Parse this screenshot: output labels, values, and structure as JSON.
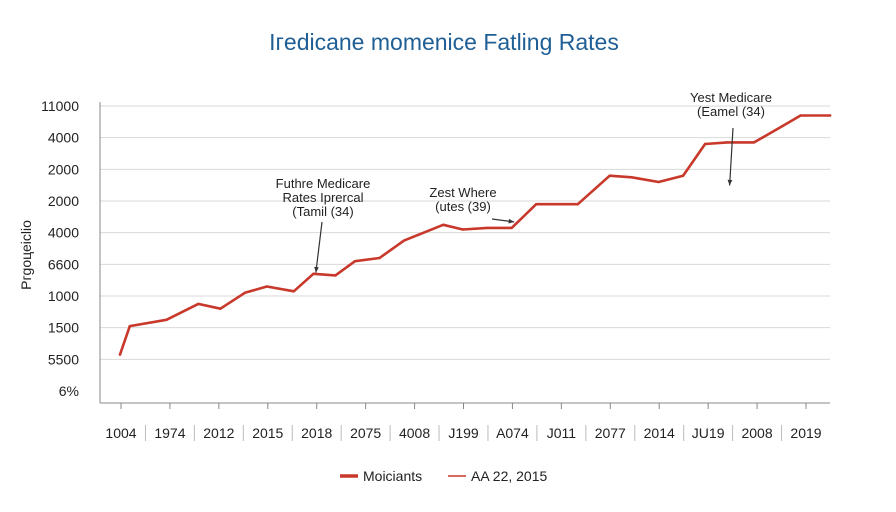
{
  "chart_data": {
    "type": "line",
    "title": "Ігedicane momenice Fatling Rates",
    "ylabel": "Ргgоцеісlіо",
    "xlabel": "",
    "grid": true,
    "y_tick_labels": [
      "11000",
      "4000",
      "2000",
      "2000",
      "4000",
      "6600",
      "1000",
      "1500",
      "5500",
      "6%"
    ],
    "x_tick_labels": [
      "1004",
      "1974",
      "2012",
      "2015",
      "2018",
      "2075",
      "4008",
      "J199",
      "A074",
      "J011",
      "2077",
      "2014",
      "JU19",
      "2008",
      "2019"
    ],
    "ylim": [
      0,
      9
    ],
    "xlim": [
      0,
      14.5
    ],
    "series": [
      {
        "name": "Moicіants",
        "color": "#c8382b",
        "x": [
          0,
          0.2,
          0.95,
          1.6,
          2.05,
          2.55,
          3.0,
          3.55,
          3.95,
          4.4,
          4.8,
          5.3,
          5.8,
          6.2,
          6.6,
          7.0,
          7.5,
          8.0,
          8.5,
          8.9,
          9.35,
          10.0,
          10.45,
          11.0,
          11.5,
          11.95,
          12.4,
          12.95,
          13.4,
          13.9,
          14.5
        ],
        "y": [
          1.15,
          2.05,
          2.25,
          2.75,
          2.6,
          3.1,
          3.3,
          3.15,
          3.7,
          3.65,
          4.1,
          4.2,
          4.75,
          5.0,
          5.25,
          5.1,
          5.15,
          5.15,
          5.9,
          5.9,
          5.9,
          6.8,
          6.75,
          6.6,
          6.8,
          7.8,
          7.85,
          7.85,
          8.25,
          8.7,
          8.7
        ]
      }
    ],
    "legend": {
      "placement": "bottom-center",
      "entries": [
        {
          "label": "Moicіants",
          "color": "#c8382b",
          "style": "thick"
        },
        {
          "label": "AA 22, 2015",
          "color": "#c8382b",
          "style": "thin"
        }
      ]
    },
    "annotations": [
      {
        "lines": [
          "Futhre Medicare",
          "Rates Iprercal",
          "(Tamil (34)"
        ],
        "x": 4.0,
        "y": 3.55
      },
      {
        "lines": [
          "Zest Where",
          "(utes (39)"
        ],
        "x": 8.05,
        "y": 5.15
      },
      {
        "lines": [
          "Yest Medicare",
          "(Eamel (34)"
        ],
        "x": 12.45,
        "y": 6.3
      }
    ]
  }
}
